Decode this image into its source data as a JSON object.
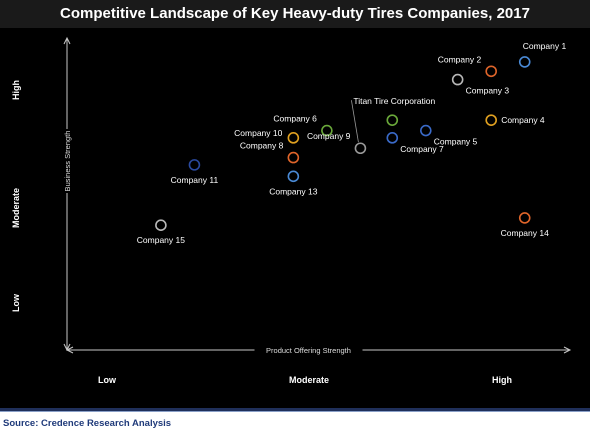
{
  "chart_data": {
    "type": "scatter",
    "title": "Competitive Landscape of Key Heavy-duty Tires Companies, 2017",
    "xlabel": "Product Offering Strength",
    "ylabel": "Business Strength",
    "x_tick_labels": [
      "Low",
      "Moderate",
      "High"
    ],
    "y_tick_labels": [
      "Low",
      "Moderate",
      "High"
    ],
    "xlim": [
      0,
      3
    ],
    "ylim": [
      0,
      3
    ],
    "grid": false,
    "points": [
      {
        "label": "Company 1",
        "x": 2.73,
        "y": 2.77,
        "color": "#4a8ad6",
        "label_pos": "top-right"
      },
      {
        "label": "Company 2",
        "x": 2.53,
        "y": 2.68,
        "color": "#e0652a",
        "label_pos": "top-left"
      },
      {
        "label": "Company 3",
        "x": 2.33,
        "y": 2.6,
        "color": "#b8b8b8",
        "label_pos": "bottom-right"
      },
      {
        "label": "Titan Tire Corporation",
        "x": 1.94,
        "y": 2.21,
        "color": "#6aa83a",
        "label_pos": "top"
      },
      {
        "label": "Company 4",
        "x": 2.53,
        "y": 2.21,
        "color": "#e0a020",
        "label_pos": "right"
      },
      {
        "label": "Company 5",
        "x": 2.14,
        "y": 2.11,
        "color": "#3a6ac8",
        "label_pos": "bottom-right"
      },
      {
        "label": "Company 6",
        "x": 1.55,
        "y": 2.11,
        "color": "#6aa83a",
        "label_pos": "top-left"
      },
      {
        "label": "Company 7",
        "x": 1.94,
        "y": 2.04,
        "color": "#3a6ac8",
        "label_pos": "bottom-right"
      },
      {
        "label": "Company 9",
        "x": 1.75,
        "y": 1.94,
        "color": "#9a9a9a",
        "label_pos": "top-left"
      },
      {
        "label": "Company 10",
        "x": 1.35,
        "y": 2.04,
        "color": "#e0a020",
        "label_pos": "left"
      },
      {
        "label": "Company 8",
        "x": 1.35,
        "y": 1.85,
        "color": "#e0652a",
        "label_pos": "top-left"
      },
      {
        "label": "Company 11",
        "x": 0.76,
        "y": 1.78,
        "color": "#2a4aa0",
        "label_pos": "bottom"
      },
      {
        "label": "Company 13",
        "x": 1.35,
        "y": 1.67,
        "color": "#4a8ad6",
        "label_pos": "bottom"
      },
      {
        "label": "Company 14",
        "x": 2.73,
        "y": 1.27,
        "color": "#e0652a",
        "label_pos": "bottom"
      },
      {
        "label": "Company 15",
        "x": 0.56,
        "y": 1.2,
        "color": "#b8b8b8",
        "label_pos": "bottom"
      }
    ]
  },
  "source": "Source: Credence Research Analysis",
  "colors": {
    "plot_background": "#000000",
    "footer_text": "#1f3a7a",
    "axis_color": "#c8c8c8"
  }
}
